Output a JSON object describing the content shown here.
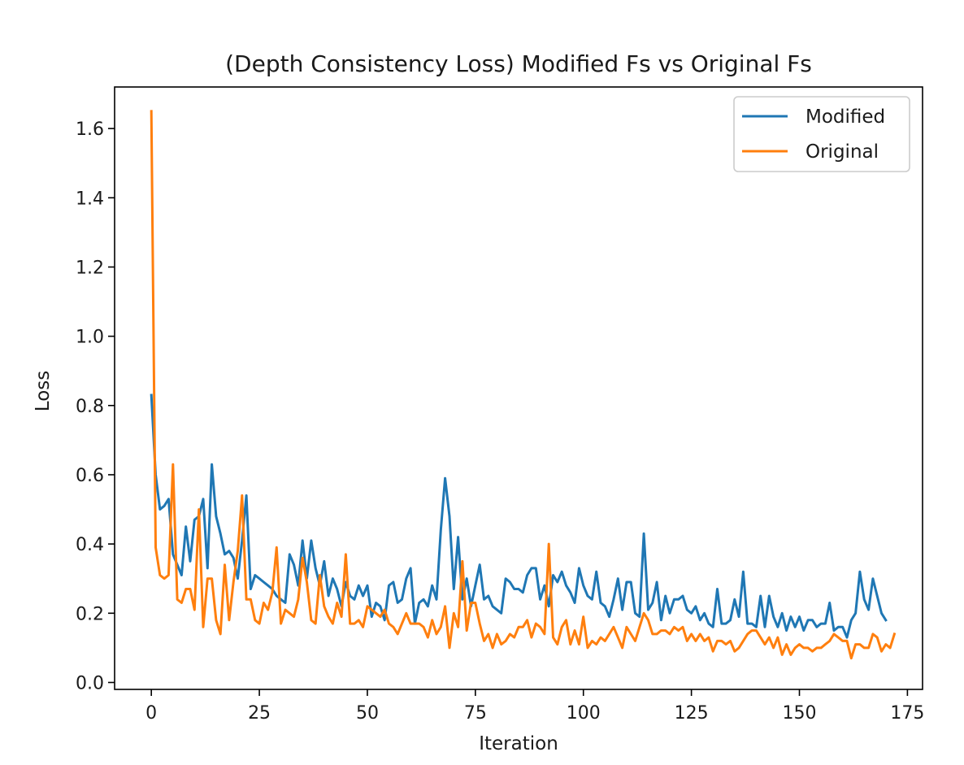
{
  "chart_data": {
    "type": "line",
    "title": "(Depth Consistency Loss) Modified Fs vs Original Fs",
    "xlabel": "Iteration",
    "ylabel": "Loss",
    "xlim": [
      -8.5,
      178.5
    ],
    "ylim": [
      -0.02,
      1.72
    ],
    "xticks": [
      0,
      25,
      50,
      75,
      100,
      125,
      150,
      175
    ],
    "yticks": [
      0.0,
      0.2,
      0.4,
      0.6,
      0.8,
      1.0,
      1.2,
      1.4,
      1.6
    ],
    "xtick_labels": [
      "0",
      "25",
      "50",
      "75",
      "100",
      "125",
      "150",
      "175"
    ],
    "ytick_labels": [
      "0.0",
      "0.2",
      "0.4",
      "0.6",
      "0.8",
      "1.0",
      "1.2",
      "1.4",
      "1.6"
    ],
    "grid": false,
    "legend_position": "upper right",
    "x_start": 0,
    "series": [
      {
        "name": "Modified",
        "color": "#1f77b4",
        "values": [
          0.83,
          0.6,
          0.5,
          0.51,
          0.53,
          0.37,
          0.34,
          0.31,
          0.45,
          0.35,
          0.47,
          0.48,
          0.53,
          0.33,
          0.63,
          0.48,
          0.43,
          0.37,
          0.38,
          0.36,
          0.3,
          0.41,
          0.54,
          0.27,
          0.31,
          0.3,
          0.29,
          0.28,
          0.27,
          0.25,
          0.24,
          0.23,
          0.37,
          0.34,
          0.28,
          0.41,
          0.3,
          0.41,
          0.33,
          0.28,
          0.35,
          0.25,
          0.3,
          0.27,
          0.22,
          0.29,
          0.25,
          0.24,
          0.28,
          0.25,
          0.28,
          0.19,
          0.23,
          0.22,
          0.18,
          0.28,
          0.29,
          0.23,
          0.24,
          0.3,
          0.33,
          0.17,
          0.23,
          0.24,
          0.22,
          0.28,
          0.24,
          0.44,
          0.59,
          0.48,
          0.27,
          0.42,
          0.24,
          0.3,
          0.22,
          0.28,
          0.34,
          0.24,
          0.25,
          0.22,
          0.21,
          0.2,
          0.3,
          0.29,
          0.27,
          0.27,
          0.26,
          0.31,
          0.33,
          0.33,
          0.24,
          0.28,
          0.22,
          0.31,
          0.29,
          0.32,
          0.28,
          0.26,
          0.23,
          0.33,
          0.28,
          0.25,
          0.24,
          0.32,
          0.23,
          0.22,
          0.19,
          0.24,
          0.3,
          0.21,
          0.29,
          0.29,
          0.2,
          0.19,
          0.43,
          0.21,
          0.23,
          0.29,
          0.18,
          0.25,
          0.2,
          0.24,
          0.24,
          0.25,
          0.21,
          0.2,
          0.22,
          0.18,
          0.2,
          0.17,
          0.16,
          0.27,
          0.17,
          0.17,
          0.18,
          0.24,
          0.19,
          0.32,
          0.17,
          0.17,
          0.16,
          0.25,
          0.16,
          0.25,
          0.19,
          0.16,
          0.2,
          0.15,
          0.19,
          0.16,
          0.19,
          0.15,
          0.18,
          0.18,
          0.16,
          0.17,
          0.17,
          0.23,
          0.15,
          0.16,
          0.16,
          0.13,
          0.18,
          0.2,
          0.32,
          0.24,
          0.21,
          0.3,
          0.25,
          0.2,
          0.18
        ]
      },
      {
        "name": "Original",
        "color": "#ff7f0e",
        "values": [
          1.65,
          0.39,
          0.31,
          0.3,
          0.31,
          0.63,
          0.24,
          0.23,
          0.27,
          0.27,
          0.21,
          0.5,
          0.16,
          0.3,
          0.3,
          0.18,
          0.14,
          0.34,
          0.18,
          0.29,
          0.38,
          0.54,
          0.24,
          0.24,
          0.18,
          0.17,
          0.23,
          0.21,
          0.26,
          0.39,
          0.17,
          0.21,
          0.2,
          0.19,
          0.24,
          0.36,
          0.29,
          0.18,
          0.17,
          0.31,
          0.22,
          0.19,
          0.17,
          0.23,
          0.19,
          0.37,
          0.17,
          0.17,
          0.18,
          0.16,
          0.22,
          0.21,
          0.2,
          0.19,
          0.21,
          0.17,
          0.16,
          0.14,
          0.17,
          0.2,
          0.17,
          0.17,
          0.17,
          0.16,
          0.13,
          0.18,
          0.14,
          0.16,
          0.22,
          0.1,
          0.2,
          0.16,
          0.35,
          0.15,
          0.23,
          0.23,
          0.17,
          0.12,
          0.14,
          0.1,
          0.14,
          0.11,
          0.12,
          0.14,
          0.13,
          0.16,
          0.16,
          0.18,
          0.13,
          0.17,
          0.16,
          0.14,
          0.4,
          0.13,
          0.11,
          0.16,
          0.18,
          0.11,
          0.15,
          0.11,
          0.19,
          0.1,
          0.12,
          0.11,
          0.13,
          0.12,
          0.14,
          0.16,
          0.13,
          0.1,
          0.16,
          0.14,
          0.12,
          0.16,
          0.2,
          0.18,
          0.14,
          0.14,
          0.15,
          0.15,
          0.14,
          0.16,
          0.15,
          0.16,
          0.12,
          0.14,
          0.12,
          0.14,
          0.12,
          0.13,
          0.09,
          0.12,
          0.12,
          0.11,
          0.12,
          0.09,
          0.1,
          0.12,
          0.14,
          0.15,
          0.15,
          0.13,
          0.11,
          0.13,
          0.1,
          0.13,
          0.08,
          0.11,
          0.08,
          0.1,
          0.11,
          0.1,
          0.1,
          0.09,
          0.1,
          0.1,
          0.11,
          0.12,
          0.14,
          0.13,
          0.12,
          0.12,
          0.07,
          0.11,
          0.11,
          0.1,
          0.1,
          0.14,
          0.13,
          0.09,
          0.11,
          0.1,
          0.14
        ]
      }
    ]
  }
}
